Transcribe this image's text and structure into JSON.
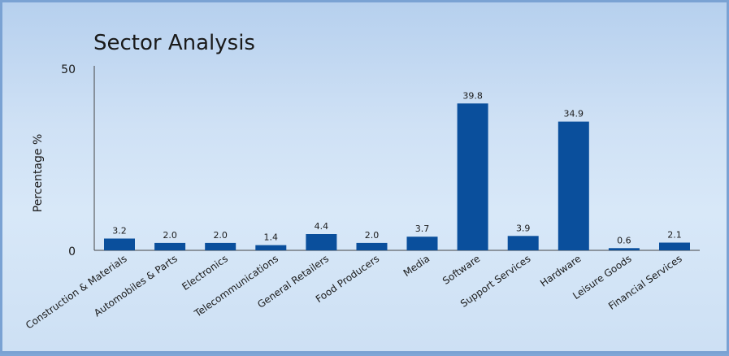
{
  "chart_data": {
    "type": "bar",
    "title": "Sector Analysis",
    "ylabel": "Percentage %",
    "xlabel": "",
    "ylim": [
      0,
      50
    ],
    "yticks": [
      "0",
      "50"
    ],
    "categories": [
      "Construction & Materials",
      "Automobiles & Parts",
      "Electronics",
      "Telecommunications",
      "General Retailers",
      "Food Producers",
      "Media",
      "Software",
      "Support Services",
      "Hardware",
      "Leisure Goods",
      "Financial Services"
    ],
    "values": [
      3.2,
      2.0,
      2.0,
      1.4,
      4.4,
      2.0,
      3.7,
      39.8,
      3.9,
      34.9,
      0.6,
      2.1
    ],
    "value_labels": [
      "3.2",
      "2.0",
      "2.0",
      "1.4",
      "4.4",
      "2.0",
      "3.7",
      "39.8",
      "3.9",
      "34.9",
      "0.6",
      "2.1"
    ],
    "bar_color": "#0a4f9c",
    "grid": false,
    "legend": "none"
  }
}
